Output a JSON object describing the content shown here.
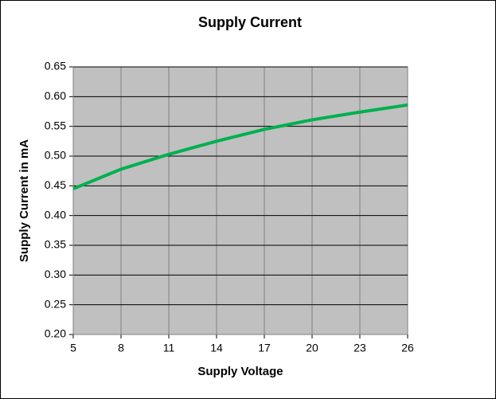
{
  "chart_data": {
    "type": "line",
    "title": "Supply Current",
    "x_label": "Supply Voltage",
    "y_label": "Supply Current in mA",
    "x": [
      5,
      8,
      11,
      14,
      17,
      20,
      23,
      26
    ],
    "values": [
      0.445,
      0.478,
      0.503,
      0.525,
      0.545,
      0.561,
      0.574,
      0.586
    ],
    "color": "#00b050",
    "xlim": [
      5,
      26
    ],
    "xticks": [
      5,
      8,
      11,
      14,
      17,
      20,
      23,
      26
    ],
    "ylim": [
      0.2,
      0.65
    ],
    "yticks": [
      {
        "value": 0.2,
        "label": "0.20"
      },
      0.25,
      {
        "value": 0.3,
        "label": "0.30"
      },
      0.35,
      {
        "value": 0.4,
        "label": "0.40"
      },
      0.45,
      {
        "value": 0.5,
        "label": "0.50"
      },
      0.55,
      {
        "value": 0.6,
        "label": "0.60"
      },
      0.65
    ],
    "grid": true
  }
}
